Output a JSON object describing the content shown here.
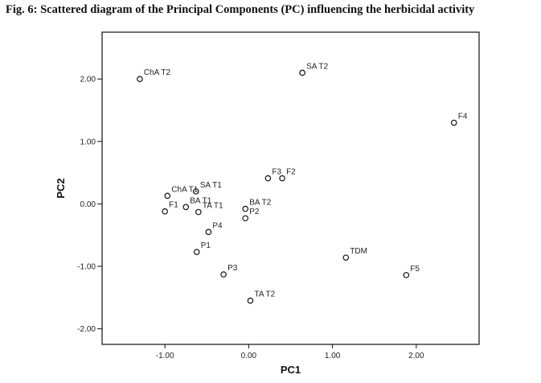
{
  "figure": {
    "title": "Fig. 6: Scattered diagram of the Principal  Components (PC) influencing the herbicidal activity"
  },
  "chart_data": {
    "type": "scatter",
    "title": "Fig. 6: Scattered diagram of the Principal  Components (PC) influencing the herbicidal activity",
    "xlabel": "PC1",
    "ylabel": "PC2",
    "xlim": [
      -1.75,
      2.75
    ],
    "ylim": [
      -2.25,
      2.75
    ],
    "xticks": [
      -1.0,
      0.0,
      1.0,
      2.0
    ],
    "xtick_labels": [
      "-1.00",
      "0.00",
      "1.00",
      "2.00"
    ],
    "yticks": [
      2.0,
      1.0,
      0.0,
      -1.0,
      -2.0
    ],
    "ytick_labels": [
      "2.00",
      "1.00",
      "0.00",
      "-1.00",
      "-2.00"
    ],
    "grid": false,
    "marker": "open-circle",
    "points": [
      {
        "label": "ChA T2",
        "x": -1.3,
        "y": 2.0
      },
      {
        "label": "SA T2",
        "x": 0.64,
        "y": 2.1
      },
      {
        "label": "F4",
        "x": 2.45,
        "y": 1.3
      },
      {
        "label": "F3",
        "x": 0.23,
        "y": 0.41
      },
      {
        "label": "F2",
        "x": 0.4,
        "y": 0.41
      },
      {
        "label": "ChA T1",
        "x": -0.97,
        "y": 0.13
      },
      {
        "label": "SA T1",
        "x": -0.63,
        "y": 0.2
      },
      {
        "label": "F1",
        "x": -1.0,
        "y": -0.12
      },
      {
        "label": "BA T1",
        "x": -0.75,
        "y": -0.05
      },
      {
        "label": "TA T1",
        "x": -0.6,
        "y": -0.13
      },
      {
        "label": "BA T2",
        "x": -0.04,
        "y": -0.08
      },
      {
        "label": "P2",
        "x": -0.04,
        "y": -0.23
      },
      {
        "label": "P4",
        "x": -0.48,
        "y": -0.45
      },
      {
        "label": "P1",
        "x": -0.62,
        "y": -0.77
      },
      {
        "label": "P3",
        "x": -0.3,
        "y": -1.13
      },
      {
        "label": "TA T2",
        "x": 0.02,
        "y": -1.55
      },
      {
        "label": "TDM",
        "x": 1.16,
        "y": -0.86
      },
      {
        "label": "F5",
        "x": 1.88,
        "y": -1.14
      }
    ]
  }
}
